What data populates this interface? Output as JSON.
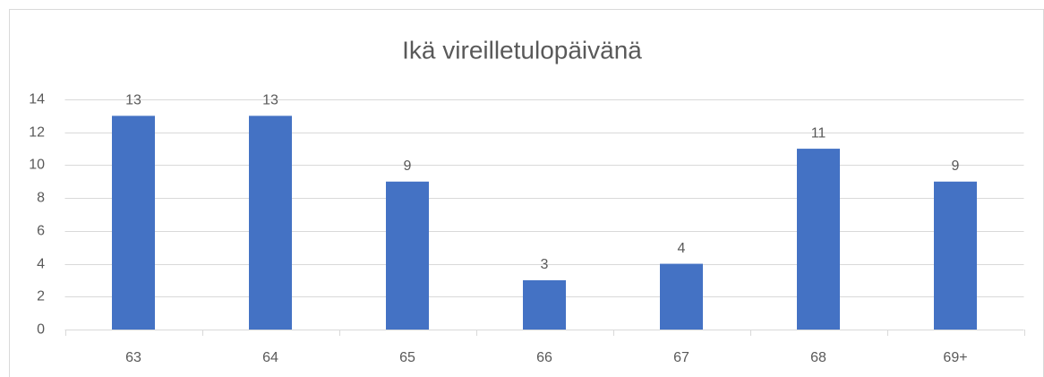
{
  "chart_data": {
    "type": "bar",
    "title": "Ikä vireilletulopäivänä",
    "categories": [
      "63",
      "64",
      "65",
      "66",
      "67",
      "68",
      "69+"
    ],
    "values": [
      13,
      13,
      9,
      3,
      4,
      11,
      9
    ],
    "color": "#4472c4",
    "ylim": [
      0,
      14
    ],
    "yticks": [
      0,
      2,
      4,
      6,
      8,
      10,
      12,
      14
    ],
    "grid": true
  }
}
